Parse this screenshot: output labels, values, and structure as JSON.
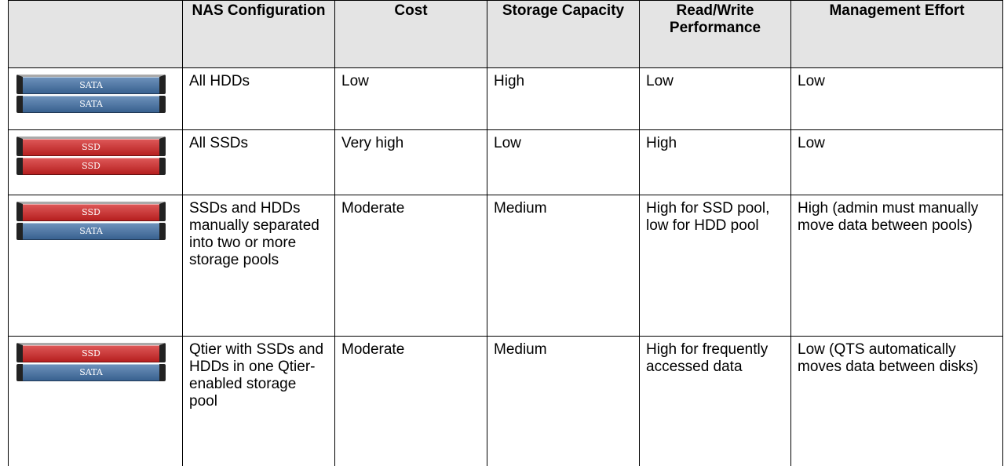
{
  "table": {
    "headers": [
      "NAS Configuration",
      "Cost",
      "Storage Capacity",
      "Read/Write Performance",
      "Management Effort"
    ],
    "rows": [
      {
        "drives": [
          {
            "label": "SATA",
            "color": "#3f6fa6"
          },
          {
            "label": "SATA",
            "color": "#3f6fa6"
          }
        ],
        "cells": [
          "All HDDs",
          "Low",
          "High",
          "Low",
          "Low"
        ]
      },
      {
        "drives": [
          {
            "label": "SSD",
            "color": "#d42222"
          },
          {
            "label": "SSD",
            "color": "#d42222"
          }
        ],
        "cells": [
          "All SSDs",
          "Very high",
          "Low",
          "High",
          "Low"
        ]
      },
      {
        "drives": [
          {
            "label": "SSD",
            "color": "#d42222"
          },
          {
            "label": "SATA",
            "color": "#3f6fa6"
          }
        ],
        "cells": [
          "SSDs and HDDs manually separated into two or more storage pools",
          "Moderate",
          "Medium",
          "High for SSD pool, low for HDD pool",
          "High (admin must manually move data between pools)"
        ]
      },
      {
        "drives": [
          {
            "label": "SSD",
            "color": "#d42222"
          },
          {
            "label": "SATA",
            "color": "#3f6fa6"
          }
        ],
        "cells": [
          "Qtier with SSDs and HDDs in one Qtier-enabled storage pool",
          "Moderate",
          "Medium",
          "High for frequently accessed data",
          "Low (QTS automatically moves data between disks)"
        ]
      }
    ]
  }
}
